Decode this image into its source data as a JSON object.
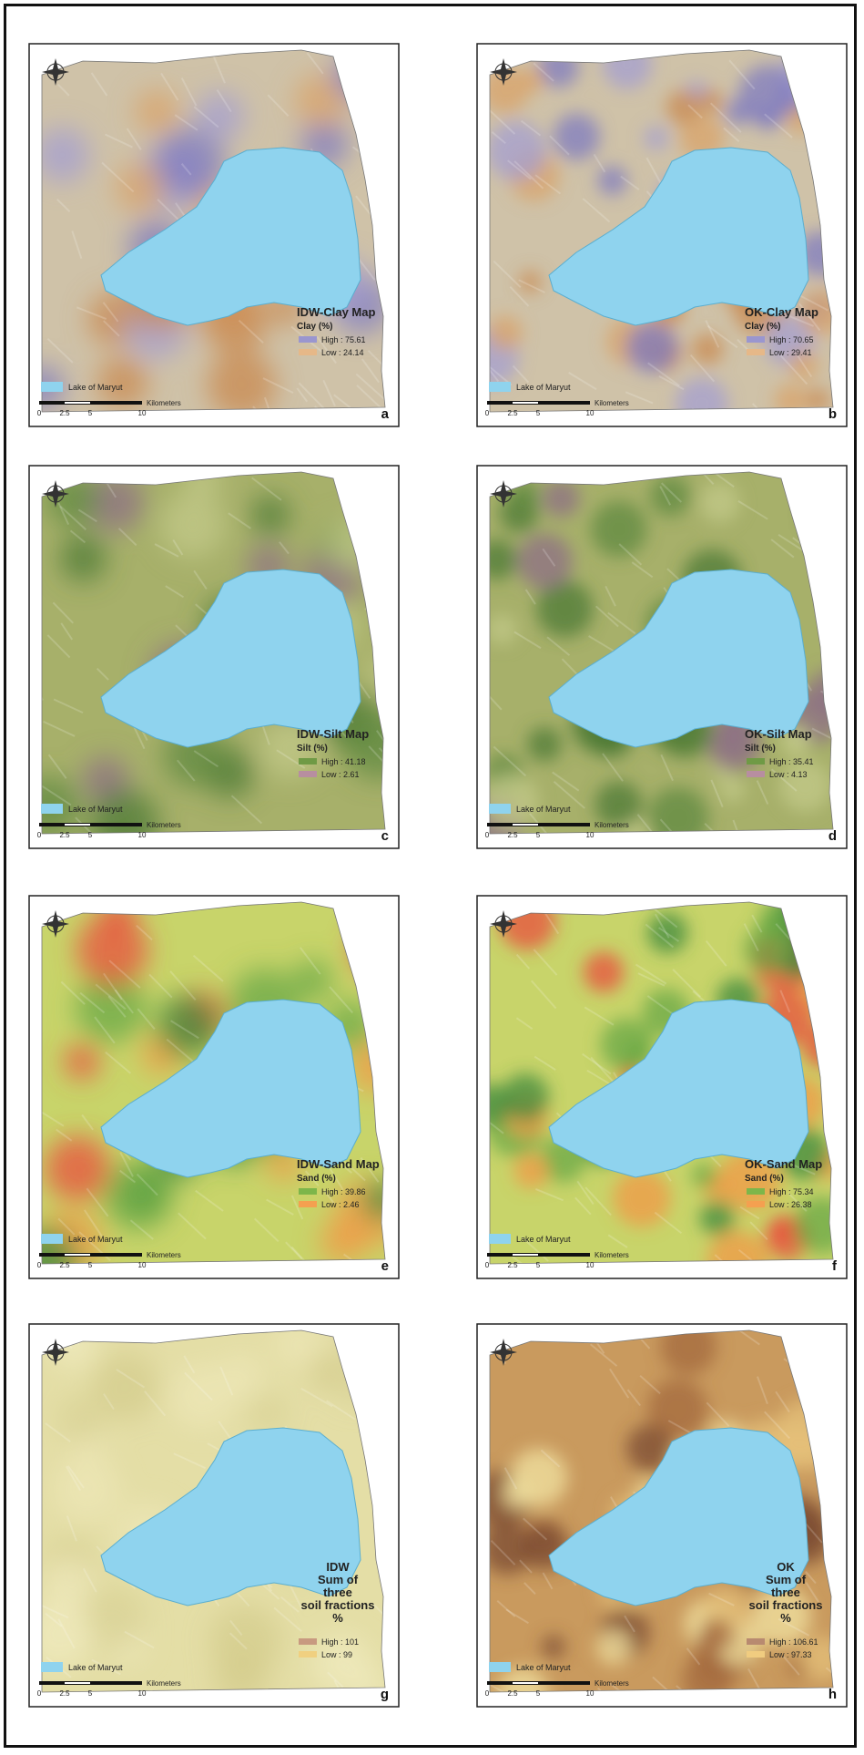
{
  "panels": [
    {
      "letter": "a",
      "title": [
        "IDW-Clay Map"
      ],
      "legend_title": "Clay (%)",
      "high": "High : 75.61",
      "low": "Low : 24.14",
      "lake": "Lake of Maryut",
      "scale_unit": "Kilometers",
      "scale_ticks": [
        "0",
        "2.5",
        "5",
        "10"
      ]
    },
    {
      "letter": "b",
      "title": [
        "OK-Clay Map"
      ],
      "legend_title": "Clay (%)",
      "high": "High : 70.65",
      "low": "Low : 29.41",
      "lake": "Lake of Maryut",
      "scale_unit": "Kilometers",
      "scale_ticks": [
        "0",
        "2.5",
        "5",
        "10"
      ]
    },
    {
      "letter": "c",
      "title": [
        "IDW-Silt Map"
      ],
      "legend_title": "Silt (%)",
      "high": "High : 41.18",
      "low": "Low : 2.61",
      "lake": "Lake of Maryut",
      "scale_unit": "Kilometers",
      "scale_ticks": [
        "0",
        "2.5",
        "5",
        "10"
      ]
    },
    {
      "letter": "d",
      "title": [
        "OK-Silt Map"
      ],
      "legend_title": "Silt (%)",
      "high": "High : 35.41",
      "low": "Low : 4.13",
      "lake": "Lake of Maryut",
      "scale_unit": "Kilometers",
      "scale_ticks": [
        "0",
        "2.5",
        "5",
        "10"
      ]
    },
    {
      "letter": "e",
      "title": [
        "IDW-Sand Map"
      ],
      "legend_title": "Sand (%)",
      "high": "High : 39.86",
      "low": "Low : 2.46",
      "lake": "Lake of Maryut",
      "scale_unit": "Kilometers",
      "scale_ticks": [
        "0",
        "2.5",
        "5",
        "10"
      ]
    },
    {
      "letter": "f",
      "title": [
        "OK-Sand Map"
      ],
      "legend_title": "Sand (%)",
      "high": "High : 75.34",
      "low": "Low : 26.38",
      "lake": "Lake of Maryut",
      "scale_unit": "Kilometers",
      "scale_ticks": [
        "0",
        "2.5",
        "5",
        "10"
      ]
    },
    {
      "letter": "g",
      "title": [
        "IDW",
        "Sum of",
        "three",
        "soil fractions",
        "%"
      ],
      "legend_title": null,
      "high": "High : 101",
      "low": "Low : 99",
      "lake": "Lake of Maryut",
      "scale_unit": "Kilometers",
      "scale_ticks": [
        "0",
        "2.5",
        "5",
        "10"
      ]
    },
    {
      "letter": "h",
      "title": [
        "OK",
        "Sum of",
        "three",
        "soil fractions",
        "%"
      ],
      "legend_title": null,
      "high": "High : 106.61",
      "low": "Low : 97.33",
      "lake": "Lake of Maryut",
      "scale_unit": "Kilometers",
      "scale_ticks": [
        "0",
        "2.5",
        "5",
        "10"
      ]
    }
  ]
}
